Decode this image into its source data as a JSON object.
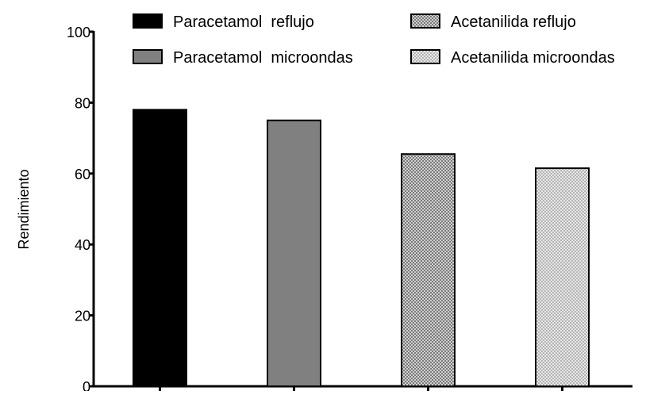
{
  "chart_data": {
    "type": "bar",
    "ylabel": "Rendimiento",
    "ylim": [
      0,
      100
    ],
    "yticks": [
      0,
      20,
      40,
      60,
      80,
      100
    ],
    "grid": false,
    "legend_position": "top",
    "categories": [
      "Paracetamol reflujo",
      "Paracetamol microondas",
      "Acetanilida reflujo",
      "Acetanilida microondas"
    ],
    "series": [
      {
        "name": "Paracetamol  reflujo",
        "value": 78,
        "fill": "#000000",
        "pattern": "solid"
      },
      {
        "name": "Paracetamol  microondas",
        "value": 75,
        "fill": "#808080",
        "pattern": "solid"
      },
      {
        "name": "Acetanilida reflujo",
        "value": 65.5,
        "fill": "#a0a0a0",
        "pattern": "dense-dots"
      },
      {
        "name": "Acetanilida microondas",
        "value": 61.5,
        "fill": "#cfcfcf",
        "pattern": "light-dots"
      }
    ]
  }
}
